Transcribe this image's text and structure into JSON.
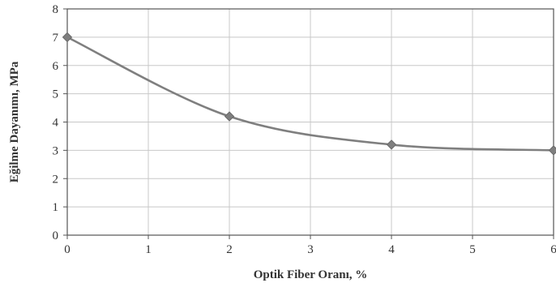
{
  "chart_data": {
    "type": "line",
    "title": "",
    "xlabel": "Optik Fiber Oranı, %",
    "ylabel": "Eğilme Dayanımı, MPa",
    "xlim": [
      0,
      6
    ],
    "ylim": [
      0,
      8
    ],
    "x_ticks": [
      "0",
      "1",
      "2",
      "3",
      "4",
      "5",
      "6"
    ],
    "y_ticks": [
      "0",
      "1",
      "2",
      "3",
      "4",
      "5",
      "6",
      "7",
      "8"
    ],
    "grid": true,
    "smooth": true,
    "line_color": "#7f7f7f",
    "series": [
      {
        "x": [
          0,
          2,
          4,
          6
        ],
        "values": [
          7.0,
          4.2,
          3.2,
          3.0
        ]
      }
    ]
  }
}
